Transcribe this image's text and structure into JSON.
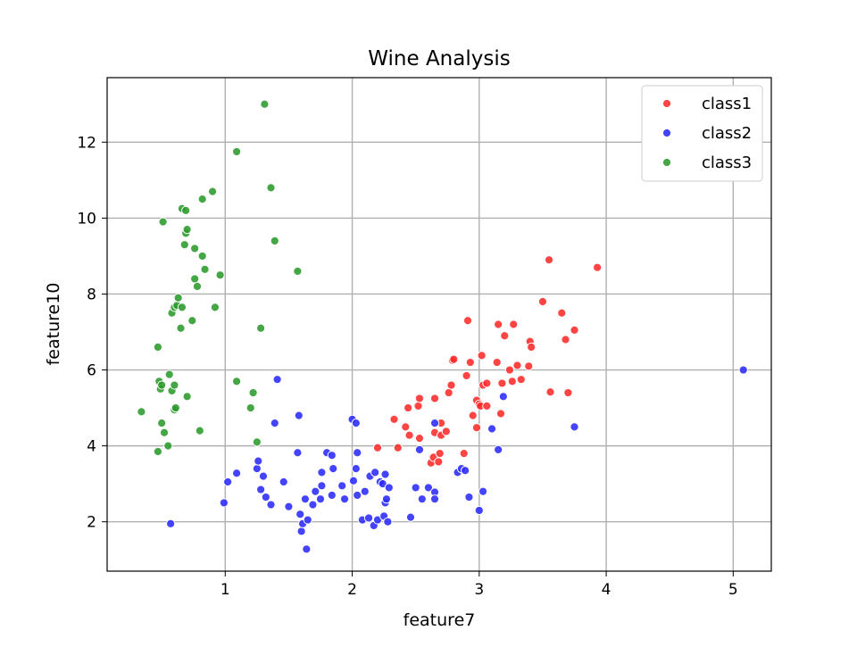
{
  "chart_data": {
    "type": "scatter",
    "title": "Wine Analysis",
    "xlabel": "feature7",
    "ylabel": "feature10",
    "xlim": [
      0.07,
      5.3
    ],
    "ylim": [
      0.7,
      13.7
    ],
    "xticks": [
      1,
      2,
      3,
      4,
      5
    ],
    "yticks": [
      2,
      4,
      6,
      8,
      10,
      12
    ],
    "grid": true,
    "legend_position": "top-right",
    "series": [
      {
        "name": "class1",
        "color": "#ff2a2a",
        "points": [
          [
            2.2,
            3.95
          ],
          [
            2.33,
            4.7
          ],
          [
            2.36,
            3.95
          ],
          [
            2.42,
            4.5
          ],
          [
            2.45,
            4.28
          ],
          [
            2.44,
            5.0
          ],
          [
            2.52,
            5.05
          ],
          [
            2.53,
            5.25
          ],
          [
            2.53,
            4.2
          ],
          [
            2.62,
            3.55
          ],
          [
            2.64,
            3.7
          ],
          [
            2.65,
            4.35
          ],
          [
            2.65,
            5.25
          ],
          [
            2.68,
            3.58
          ],
          [
            2.69,
            3.8
          ],
          [
            2.7,
            4.6
          ],
          [
            2.7,
            4.28
          ],
          [
            2.74,
            4.38
          ],
          [
            2.76,
            5.4
          ],
          [
            2.78,
            5.6
          ],
          [
            2.79,
            6.25
          ],
          [
            2.8,
            6.28
          ],
          [
            2.88,
            3.8
          ],
          [
            2.9,
            5.85
          ],
          [
            2.91,
            7.3
          ],
          [
            2.93,
            6.2
          ],
          [
            2.95,
            4.8
          ],
          [
            2.98,
            4.48
          ],
          [
            2.98,
            5.2
          ],
          [
            3.0,
            5.1
          ],
          [
            3.01,
            5.05
          ],
          [
            3.02,
            6.38
          ],
          [
            3.03,
            5.6
          ],
          [
            3.06,
            5.05
          ],
          [
            3.06,
            5.65
          ],
          [
            3.14,
            6.2
          ],
          [
            3.15,
            7.2
          ],
          [
            3.17,
            4.85
          ],
          [
            3.18,
            5.65
          ],
          [
            3.2,
            6.9
          ],
          [
            3.24,
            6.0
          ],
          [
            3.26,
            5.7
          ],
          [
            3.27,
            7.2
          ],
          [
            3.3,
            6.12
          ],
          [
            3.33,
            5.75
          ],
          [
            3.39,
            6.1
          ],
          [
            3.4,
            6.75
          ],
          [
            3.41,
            6.6
          ],
          [
            3.5,
            7.8
          ],
          [
            3.55,
            8.9
          ],
          [
            3.56,
            5.42
          ],
          [
            3.65,
            7.5
          ],
          [
            3.68,
            6.8
          ],
          [
            3.7,
            5.4
          ],
          [
            3.75,
            7.05
          ],
          [
            3.93,
            8.7
          ]
        ]
      },
      {
        "name": "class2",
        "color": "#2a2aff",
        "points": [
          [
            0.57,
            1.95
          ],
          [
            0.99,
            2.5
          ],
          [
            1.02,
            3.05
          ],
          [
            1.09,
            3.28
          ],
          [
            1.25,
            3.4
          ],
          [
            1.26,
            3.6
          ],
          [
            1.28,
            2.85
          ],
          [
            1.3,
            3.2
          ],
          [
            1.32,
            2.65
          ],
          [
            1.36,
            2.45
          ],
          [
            1.39,
            4.6
          ],
          [
            1.41,
            5.75
          ],
          [
            1.46,
            3.05
          ],
          [
            1.5,
            2.4
          ],
          [
            1.57,
            3.82
          ],
          [
            1.58,
            4.8
          ],
          [
            1.59,
            2.2
          ],
          [
            1.6,
            1.75
          ],
          [
            1.61,
            1.95
          ],
          [
            1.63,
            2.6
          ],
          [
            1.64,
            1.28
          ],
          [
            1.65,
            2.05
          ],
          [
            1.69,
            2.45
          ],
          [
            1.71,
            2.8
          ],
          [
            1.75,
            2.6
          ],
          [
            1.76,
            2.95
          ],
          [
            1.76,
            3.3
          ],
          [
            1.8,
            3.82
          ],
          [
            1.84,
            2.7
          ],
          [
            1.84,
            3.75
          ],
          [
            1.85,
            3.4
          ],
          [
            1.92,
            2.95
          ],
          [
            1.94,
            2.6
          ],
          [
            2.01,
            3.08
          ],
          [
            2.0,
            4.7
          ],
          [
            2.03,
            4.6
          ],
          [
            2.03,
            3.4
          ],
          [
            2.04,
            2.7
          ],
          [
            2.04,
            3.82
          ],
          [
            2.08,
            2.05
          ],
          [
            2.1,
            2.8
          ],
          [
            2.13,
            2.1
          ],
          [
            2.14,
            3.2
          ],
          [
            2.17,
            1.9
          ],
          [
            2.18,
            3.3
          ],
          [
            2.2,
            2.05
          ],
          [
            2.22,
            3.05
          ],
          [
            2.24,
            3.0
          ],
          [
            2.25,
            2.15
          ],
          [
            2.26,
            3.25
          ],
          [
            2.26,
            2.5
          ],
          [
            2.27,
            2.6
          ],
          [
            2.28,
            2.0
          ],
          [
            2.29,
            2.9
          ],
          [
            2.46,
            2.12
          ],
          [
            2.5,
            2.9
          ],
          [
            2.53,
            3.9
          ],
          [
            2.55,
            2.6
          ],
          [
            2.6,
            2.9
          ],
          [
            2.65,
            4.6
          ],
          [
            2.65,
            2.78
          ],
          [
            2.65,
            2.6
          ],
          [
            2.83,
            3.3
          ],
          [
            2.86,
            3.4
          ],
          [
            2.89,
            3.35
          ],
          [
            2.92,
            2.65
          ],
          [
            3.0,
            2.3
          ],
          [
            3.03,
            2.8
          ],
          [
            3.1,
            4.45
          ],
          [
            3.15,
            3.9
          ],
          [
            3.19,
            5.3
          ],
          [
            3.75,
            4.5
          ],
          [
            5.08,
            6.0
          ]
        ]
      },
      {
        "name": "class3",
        "color": "#2a9a2a",
        "points": [
          [
            0.34,
            4.9
          ],
          [
            0.47,
            3.85
          ],
          [
            0.47,
            6.6
          ],
          [
            0.48,
            5.7
          ],
          [
            0.49,
            5.5
          ],
          [
            0.5,
            4.6
          ],
          [
            0.5,
            5.6
          ],
          [
            0.51,
            9.9
          ],
          [
            0.52,
            4.35
          ],
          [
            0.55,
            4.0
          ],
          [
            0.56,
            5.88
          ],
          [
            0.58,
            7.5
          ],
          [
            0.58,
            5.45
          ],
          [
            0.6,
            7.65
          ],
          [
            0.6,
            5.6
          ],
          [
            0.6,
            4.95
          ],
          [
            0.61,
            5.0
          ],
          [
            0.62,
            7.7
          ],
          [
            0.63,
            7.9
          ],
          [
            0.65,
            7.1
          ],
          [
            0.66,
            10.25
          ],
          [
            0.66,
            7.65
          ],
          [
            0.68,
            9.3
          ],
          [
            0.69,
            9.6
          ],
          [
            0.69,
            10.2
          ],
          [
            0.7,
            9.7
          ],
          [
            0.7,
            5.3
          ],
          [
            0.74,
            7.3
          ],
          [
            0.76,
            9.2
          ],
          [
            0.76,
            8.4
          ],
          [
            0.78,
            8.2
          ],
          [
            0.8,
            4.4
          ],
          [
            0.82,
            9.0
          ],
          [
            0.82,
            10.5
          ],
          [
            0.84,
            8.65
          ],
          [
            0.9,
            10.7
          ],
          [
            0.92,
            7.65
          ],
          [
            0.96,
            8.5
          ],
          [
            1.09,
            11.75
          ],
          [
            1.09,
            5.7
          ],
          [
            1.2,
            5.0
          ],
          [
            1.22,
            5.4
          ],
          [
            1.25,
            4.1
          ],
          [
            1.28,
            7.1
          ],
          [
            1.31,
            13.0
          ],
          [
            1.36,
            10.8
          ],
          [
            1.39,
            9.4
          ],
          [
            1.57,
            8.6
          ]
        ]
      }
    ]
  }
}
